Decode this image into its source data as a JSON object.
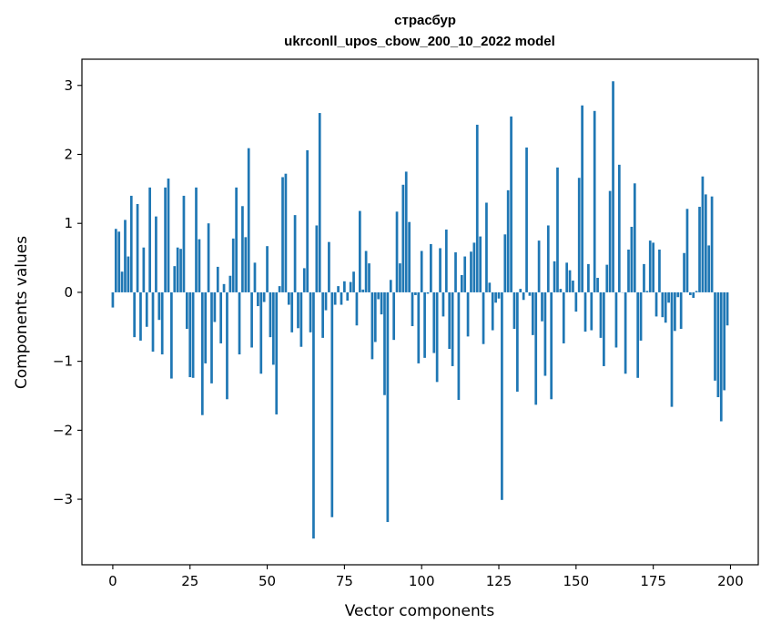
{
  "chart_data": {
    "type": "bar",
    "title": "страсбур",
    "subtitle": "ukrconll_upos_cbow_200_10_2022 model",
    "xlabel": "Vector components",
    "ylabel": "Components values",
    "xlim": [
      -10,
      209
    ],
    "ylim": [
      -3.95,
      3.38
    ],
    "xticks": [
      0,
      25,
      50,
      75,
      100,
      125,
      150,
      175,
      200
    ],
    "yticks": [
      -3,
      -2,
      -1,
      0,
      1,
      2,
      3
    ],
    "ytick_labels": [
      "−3",
      "−2",
      "−1",
      "0",
      "1",
      "2",
      "3"
    ],
    "bar_color": "#1f77b4",
    "grid": false,
    "values": [
      -0.22,
      0.92,
      0.88,
      0.3,
      1.05,
      0.52,
      1.4,
      -0.65,
      1.28,
      -0.7,
      0.65,
      -0.5,
      1.52,
      -0.86,
      1.1,
      -0.4,
      -0.9,
      1.52,
      1.65,
      -1.25,
      0.38,
      0.65,
      0.63,
      1.4,
      -0.53,
      -1.23,
      -1.24,
      1.52,
      0.77,
      -1.78,
      -1.03,
      1.0,
      -1.32,
      -0.43,
      0.37,
      -0.74,
      0.12,
      -1.55,
      0.24,
      0.78,
      1.52,
      -0.9,
      1.25,
      0.8,
      2.09,
      -0.8,
      0.43,
      -0.2,
      -1.18,
      -0.14,
      0.67,
      -0.65,
      -1.05,
      -1.77,
      0.09,
      1.67,
      1.72,
      -0.18,
      -0.58,
      1.12,
      -0.52,
      -0.79,
      0.35,
      2.06,
      -0.58,
      -3.57,
      0.97,
      2.6,
      -0.66,
      -0.26,
      0.73,
      -3.26,
      -0.18,
      0.09,
      -0.18,
      0.16,
      -0.12,
      0.15,
      0.3,
      -0.48,
      1.18,
      0.04,
      0.6,
      0.42,
      -0.97,
      -0.72,
      -0.1,
      -0.32,
      -1.49,
      -3.33,
      0.18,
      -0.69,
      1.17,
      0.42,
      1.56,
      1.75,
      1.02,
      -0.49,
      -0.04,
      -1.03,
      0.6,
      -0.95,
      -0.02,
      0.7,
      -0.88,
      -1.3,
      0.64,
      -0.35,
      0.91,
      -0.82,
      -1.07,
      0.58,
      -1.56,
      0.25,
      0.52,
      -0.64,
      0.59,
      0.72,
      2.43,
      0.81,
      -0.75,
      1.3,
      0.14,
      -0.55,
      -0.15,
      -0.09,
      -3.01,
      0.84,
      1.48,
      2.55,
      -0.53,
      -1.44,
      0.05,
      -0.11,
      2.1,
      -0.05,
      -0.62,
      -1.63,
      0.75,
      -0.42,
      -1.21,
      0.97,
      -1.55,
      0.45,
      1.81,
      0.05,
      -0.74,
      0.43,
      0.32,
      0.17,
      -0.28,
      1.66,
      2.71,
      -0.57,
      0.41,
      -0.55,
      2.63,
      0.21,
      -0.66,
      -1.07,
      0.4,
      1.47,
      3.06,
      -0.8,
      1.85,
      0.0,
      -1.18,
      0.62,
      0.95,
      1.58,
      -1.24,
      -0.7,
      0.41,
      0.02,
      0.75,
      0.72,
      -0.35,
      0.62,
      -0.36,
      -0.44,
      -0.15,
      -1.66,
      -0.56,
      -0.07,
      -0.53,
      0.57,
      1.21,
      -0.04,
      -0.08,
      0.02,
      1.24,
      1.68,
      1.42,
      0.68,
      1.39,
      -1.28,
      -1.52,
      -1.87,
      -1.42,
      -0.48
    ]
  }
}
